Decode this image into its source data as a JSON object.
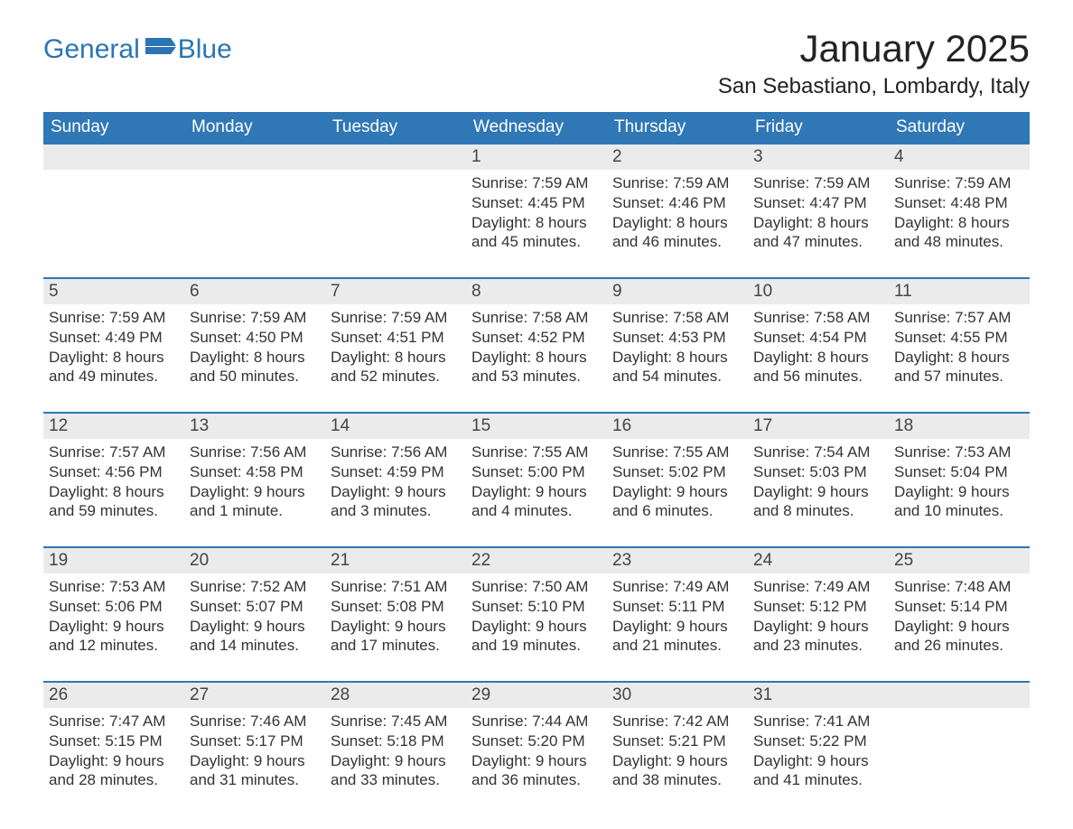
{
  "logo": {
    "text1": "General",
    "text2": "Blue"
  },
  "title": "January 2025",
  "location": "San Sebastiano, Lombardy, Italy",
  "colors": {
    "brand": "#3077b6",
    "header_bg": "#3077b6",
    "header_text": "#ffffff",
    "daynum_bg": "#ebebeb",
    "row_border": "#3077b6",
    "body_text": "#333333"
  },
  "weekdays": [
    "Sunday",
    "Monday",
    "Tuesday",
    "Wednesday",
    "Thursday",
    "Friday",
    "Saturday"
  ],
  "weeks": [
    [
      null,
      null,
      null,
      {
        "day": "1",
        "sunrise": "7:59 AM",
        "sunset": "4:45 PM",
        "daylight": "8 hours and 45 minutes."
      },
      {
        "day": "2",
        "sunrise": "7:59 AM",
        "sunset": "4:46 PM",
        "daylight": "8 hours and 46 minutes."
      },
      {
        "day": "3",
        "sunrise": "7:59 AM",
        "sunset": "4:47 PM",
        "daylight": "8 hours and 47 minutes."
      },
      {
        "day": "4",
        "sunrise": "7:59 AM",
        "sunset": "4:48 PM",
        "daylight": "8 hours and 48 minutes."
      }
    ],
    [
      {
        "day": "5",
        "sunrise": "7:59 AM",
        "sunset": "4:49 PM",
        "daylight": "8 hours and 49 minutes."
      },
      {
        "day": "6",
        "sunrise": "7:59 AM",
        "sunset": "4:50 PM",
        "daylight": "8 hours and 50 minutes."
      },
      {
        "day": "7",
        "sunrise": "7:59 AM",
        "sunset": "4:51 PM",
        "daylight": "8 hours and 52 minutes."
      },
      {
        "day": "8",
        "sunrise": "7:58 AM",
        "sunset": "4:52 PM",
        "daylight": "8 hours and 53 minutes."
      },
      {
        "day": "9",
        "sunrise": "7:58 AM",
        "sunset": "4:53 PM",
        "daylight": "8 hours and 54 minutes."
      },
      {
        "day": "10",
        "sunrise": "7:58 AM",
        "sunset": "4:54 PM",
        "daylight": "8 hours and 56 minutes."
      },
      {
        "day": "11",
        "sunrise": "7:57 AM",
        "sunset": "4:55 PM",
        "daylight": "8 hours and 57 minutes."
      }
    ],
    [
      {
        "day": "12",
        "sunrise": "7:57 AM",
        "sunset": "4:56 PM",
        "daylight": "8 hours and 59 minutes."
      },
      {
        "day": "13",
        "sunrise": "7:56 AM",
        "sunset": "4:58 PM",
        "daylight": "9 hours and 1 minute."
      },
      {
        "day": "14",
        "sunrise": "7:56 AM",
        "sunset": "4:59 PM",
        "daylight": "9 hours and 3 minutes."
      },
      {
        "day": "15",
        "sunrise": "7:55 AM",
        "sunset": "5:00 PM",
        "daylight": "9 hours and 4 minutes."
      },
      {
        "day": "16",
        "sunrise": "7:55 AM",
        "sunset": "5:02 PM",
        "daylight": "9 hours and 6 minutes."
      },
      {
        "day": "17",
        "sunrise": "7:54 AM",
        "sunset": "5:03 PM",
        "daylight": "9 hours and 8 minutes."
      },
      {
        "day": "18",
        "sunrise": "7:53 AM",
        "sunset": "5:04 PM",
        "daylight": "9 hours and 10 minutes."
      }
    ],
    [
      {
        "day": "19",
        "sunrise": "7:53 AM",
        "sunset": "5:06 PM",
        "daylight": "9 hours and 12 minutes."
      },
      {
        "day": "20",
        "sunrise": "7:52 AM",
        "sunset": "5:07 PM",
        "daylight": "9 hours and 14 minutes."
      },
      {
        "day": "21",
        "sunrise": "7:51 AM",
        "sunset": "5:08 PM",
        "daylight": "9 hours and 17 minutes."
      },
      {
        "day": "22",
        "sunrise": "7:50 AM",
        "sunset": "5:10 PM",
        "daylight": "9 hours and 19 minutes."
      },
      {
        "day": "23",
        "sunrise": "7:49 AM",
        "sunset": "5:11 PM",
        "daylight": "9 hours and 21 minutes."
      },
      {
        "day": "24",
        "sunrise": "7:49 AM",
        "sunset": "5:12 PM",
        "daylight": "9 hours and 23 minutes."
      },
      {
        "day": "25",
        "sunrise": "7:48 AM",
        "sunset": "5:14 PM",
        "daylight": "9 hours and 26 minutes."
      }
    ],
    [
      {
        "day": "26",
        "sunrise": "7:47 AM",
        "sunset": "5:15 PM",
        "daylight": "9 hours and 28 minutes."
      },
      {
        "day": "27",
        "sunrise": "7:46 AM",
        "sunset": "5:17 PM",
        "daylight": "9 hours and 31 minutes."
      },
      {
        "day": "28",
        "sunrise": "7:45 AM",
        "sunset": "5:18 PM",
        "daylight": "9 hours and 33 minutes."
      },
      {
        "day": "29",
        "sunrise": "7:44 AM",
        "sunset": "5:20 PM",
        "daylight": "9 hours and 36 minutes."
      },
      {
        "day": "30",
        "sunrise": "7:42 AM",
        "sunset": "5:21 PM",
        "daylight": "9 hours and 38 minutes."
      },
      {
        "day": "31",
        "sunrise": "7:41 AM",
        "sunset": "5:22 PM",
        "daylight": "9 hours and 41 minutes."
      },
      null
    ]
  ],
  "labels": {
    "sunrise_prefix": "Sunrise: ",
    "sunset_prefix": "Sunset: ",
    "daylight_prefix": "Daylight: "
  }
}
